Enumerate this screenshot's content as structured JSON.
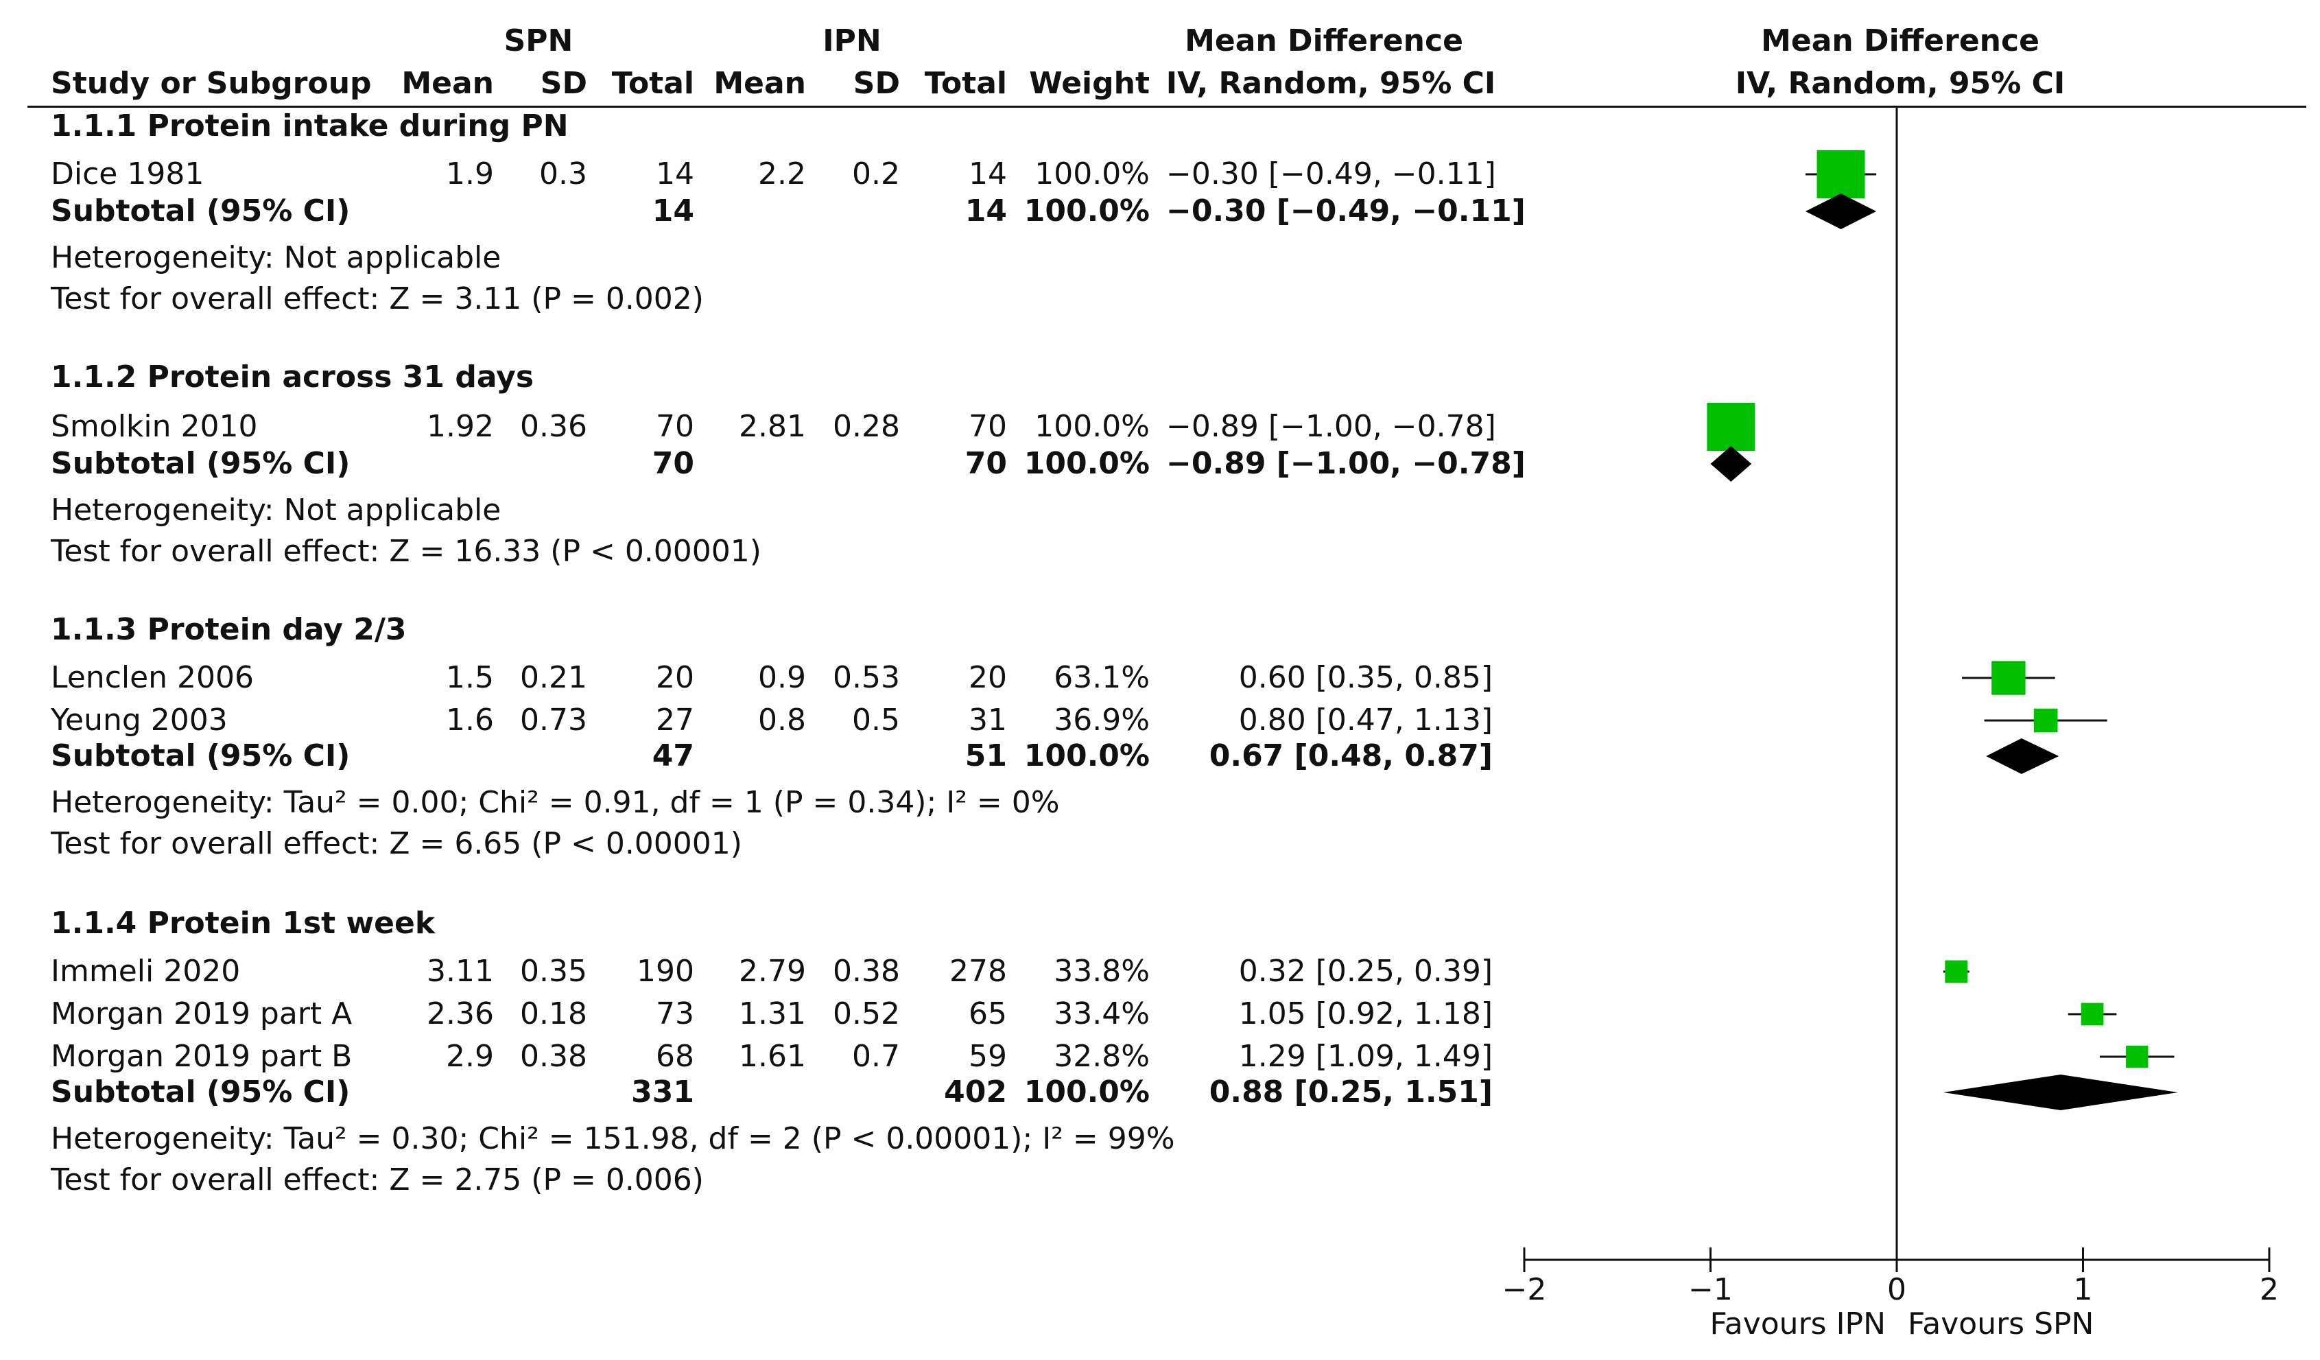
{
  "header": {
    "group1": "SPN",
    "group2": "IPN",
    "effect_title_left": "Mean Difference",
    "effect_title_right": "Mean Difference",
    "col_study": "Study or Subgroup",
    "col_mean1": "Mean",
    "col_sd1": "SD",
    "col_total1": "Total",
    "col_mean2": "Mean",
    "col_sd2": "SD",
    "col_total2": "Total",
    "col_weight": "Weight",
    "col_method_left": "IV, Random, 95% CI",
    "col_method_right": "IV, Random, 95% CI"
  },
  "subgroups": [
    {
      "title": "1.1.1 Protein intake during PN",
      "studies": [
        {
          "name": "Dice 1981",
          "mean1": "1.9",
          "sd1": "0.3",
          "total1": "14",
          "mean2": "2.2",
          "sd2": "0.2",
          "total2": "14",
          "weight": "100.0%",
          "ci_text": "−0.30 [−0.49, −0.11]",
          "md": -0.3,
          "lo": -0.49,
          "hi": -0.11,
          "w": 100.0
        }
      ],
      "subtotal": {
        "label": "Subtotal (95% CI)",
        "total1": "14",
        "total2": "14",
        "weight": "100.0%",
        "ci_text": "−0.30 [−0.49, −0.11]",
        "md": -0.3,
        "lo": -0.49,
        "hi": -0.11
      },
      "heterogeneity": "Heterogeneity: Not applicable",
      "overall": "Test for overall effect: Z = 3.11 (P = 0.002)"
    },
    {
      "title": "1.1.2 Protein across 31 days",
      "studies": [
        {
          "name": "Smolkin 2010",
          "mean1": "1.92",
          "sd1": "0.36",
          "total1": "70",
          "mean2": "2.81",
          "sd2": "0.28",
          "total2": "70",
          "weight": "100.0%",
          "ci_text": "−0.89 [−1.00, −0.78]",
          "md": -0.89,
          "lo": -1.0,
          "hi": -0.78,
          "w": 100.0
        }
      ],
      "subtotal": {
        "label": "Subtotal (95% CI)",
        "total1": "70",
        "total2": "70",
        "weight": "100.0%",
        "ci_text": "−0.89 [−1.00, −0.78]",
        "md": -0.89,
        "lo": -1.0,
        "hi": -0.78
      },
      "heterogeneity": "Heterogeneity: Not applicable",
      "overall": "Test for overall effect: Z = 16.33 (P < 0.00001)"
    },
    {
      "title": "1.1.3 Protein day 2/3",
      "studies": [
        {
          "name": "Lenclen 2006",
          "mean1": "1.5",
          "sd1": "0.21",
          "total1": "20",
          "mean2": "0.9",
          "sd2": "0.53",
          "total2": "20",
          "weight": "63.1%",
          "ci_text": "0.60 [0.35, 0.85]",
          "md": 0.6,
          "lo": 0.35,
          "hi": 0.85,
          "w": 63.1
        },
        {
          "name": "Yeung 2003",
          "mean1": "1.6",
          "sd1": "0.73",
          "total1": "27",
          "mean2": "0.8",
          "sd2": "0.5",
          "total2": "31",
          "weight": "36.9%",
          "ci_text": "0.80 [0.47, 1.13]",
          "md": 0.8,
          "lo": 0.47,
          "hi": 1.13,
          "w": 36.9
        }
      ],
      "subtotal": {
        "label": "Subtotal (95% CI)",
        "total1": "47",
        "total2": "51",
        "weight": "100.0%",
        "ci_text": "0.67 [0.48, 0.87]",
        "md": 0.67,
        "lo": 0.48,
        "hi": 0.87
      },
      "heterogeneity": "Heterogeneity: Tau² = 0.00; Chi² = 0.91, df = 1 (P = 0.34); I² = 0%",
      "overall": "Test for overall effect: Z = 6.65 (P < 0.00001)"
    },
    {
      "title": "1.1.4 Protein 1st week",
      "studies": [
        {
          "name": "Immeli 2020",
          "mean1": "3.11",
          "sd1": "0.35",
          "total1": "190",
          "mean2": "2.79",
          "sd2": "0.38",
          "total2": "278",
          "weight": "33.8%",
          "ci_text": "0.32 [0.25, 0.39]",
          "md": 0.32,
          "lo": 0.25,
          "hi": 0.39,
          "w": 33.8
        },
        {
          "name": "Morgan 2019 part A",
          "mean1": "2.36",
          "sd1": "0.18",
          "total1": "73",
          "mean2": "1.31",
          "sd2": "0.52",
          "total2": "65",
          "weight": "33.4%",
          "ci_text": "1.05 [0.92, 1.18]",
          "md": 1.05,
          "lo": 0.92,
          "hi": 1.18,
          "w": 33.4
        },
        {
          "name": "Morgan 2019 part B",
          "mean1": "2.9",
          "sd1": "0.38",
          "total1": "68",
          "mean2": "1.61",
          "sd2": "0.7",
          "total2": "59",
          "weight": "32.8%",
          "ci_text": "1.29 [1.09, 1.49]",
          "md": 1.29,
          "lo": 1.09,
          "hi": 1.49,
          "w": 32.8
        }
      ],
      "subtotal": {
        "label": "Subtotal (95% CI)",
        "total1": "331",
        "total2": "402",
        "weight": "100.0%",
        "ci_text": "0.88 [0.25, 1.51]",
        "md": 0.88,
        "lo": 0.25,
        "hi": 1.51
      },
      "heterogeneity": "Heterogeneity: Tau² = 0.30; Chi² = 151.98, df = 2 (P < 0.00001); I² = 99%",
      "overall": "Test for overall effect: Z = 2.75 (P = 0.006)"
    }
  ],
  "chart_data": {
    "type": "forest",
    "title": "Mean Difference IV, Random, 95% CI",
    "xlim": [
      -2,
      2
    ],
    "ticks": [
      "−2",
      "−1",
      "0",
      "1",
      "2"
    ],
    "tick_values": [
      -2,
      -1,
      0,
      1,
      2
    ],
    "label_left": "Favours IPN",
    "label_right": "Favours SPN",
    "study_color": "#00c000",
    "diamond_color": "#000000"
  }
}
